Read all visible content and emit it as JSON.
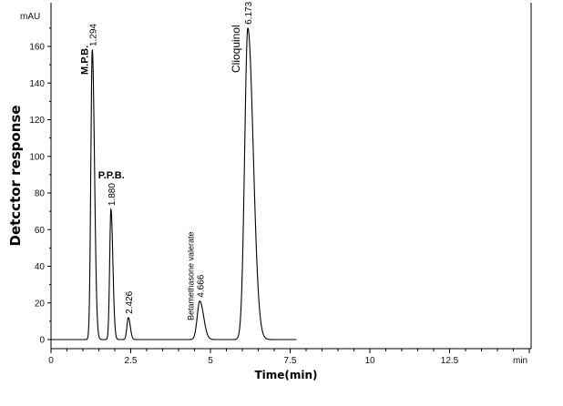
{
  "chart_data": {
    "type": "line",
    "title": "",
    "xlabel": "Time(min)",
    "ylabel": "Detcctor response",
    "x_unit": "min",
    "y_unit": "mAU",
    "xlim": [
      0,
      15
    ],
    "ylim": [
      -3,
      170
    ],
    "x_ticks": [
      0,
      2.5,
      5,
      7.5,
      10,
      12.5
    ],
    "x_tick_labels": [
      "0",
      "2.5",
      "5",
      "7.5",
      "10",
      "12.5"
    ],
    "y_ticks": [
      0,
      20,
      40,
      60,
      80,
      100,
      120,
      140,
      160
    ],
    "y_tick_labels": [
      "0",
      "20",
      "40",
      "60",
      "80",
      "100",
      "120",
      "140",
      "160"
    ],
    "grid": false,
    "line_color": "#000000",
    "run_end": 7.7,
    "peaks": [
      {
        "rt": 1.294,
        "rt_label": "1.294",
        "height": 158,
        "width": 0.045,
        "tail": 0.07,
        "compound": "M.P.B."
      },
      {
        "rt": 1.88,
        "rt_label": "1.880",
        "height": 71,
        "width": 0.04,
        "tail": 0.06,
        "compound": "P.P.B."
      },
      {
        "rt": 2.426,
        "rt_label": "2.426",
        "height": 12,
        "width": 0.045,
        "tail": 0.06,
        "compound": ""
      },
      {
        "rt": 4.666,
        "rt_label": "4.666",
        "height": 21,
        "width": 0.08,
        "tail": 0.12,
        "compound": "Betamethasone valerate"
      },
      {
        "rt": 6.173,
        "rt_label": "6.173",
        "height": 170,
        "width": 0.1,
        "tail": 0.17,
        "compound": "Clioquinol"
      }
    ]
  }
}
